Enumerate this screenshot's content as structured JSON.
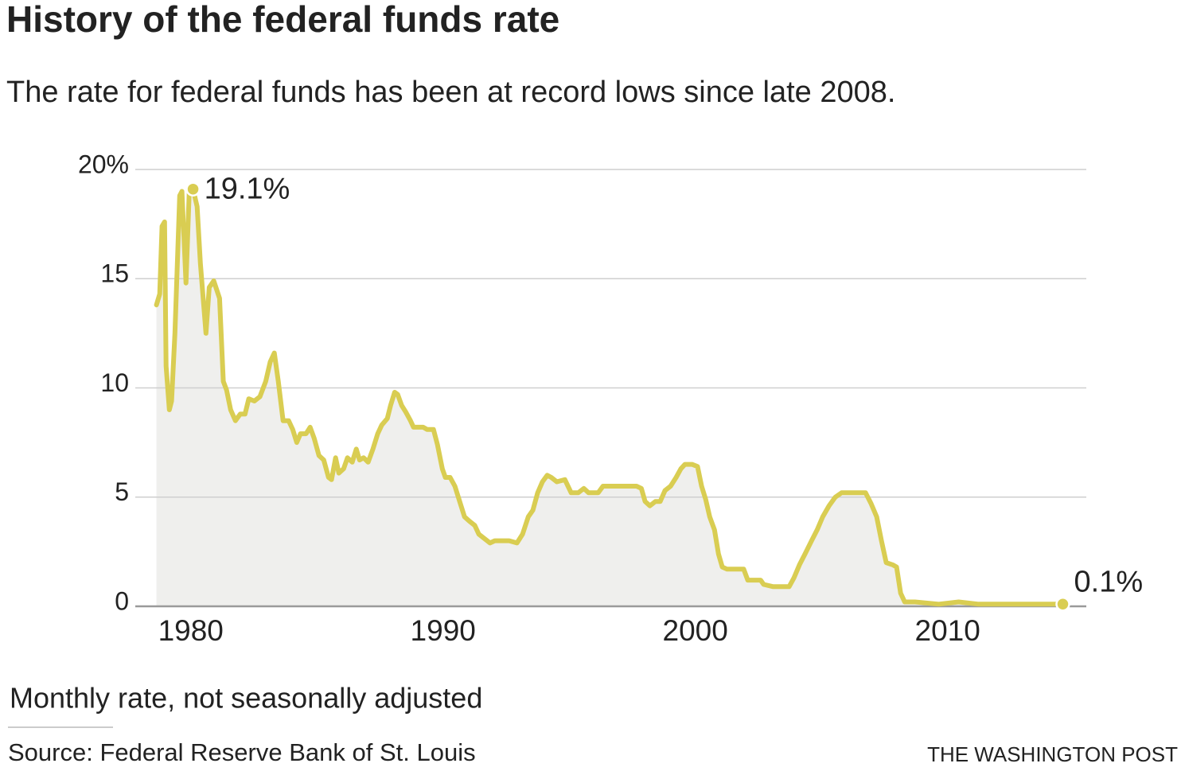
{
  "chart_data": {
    "type": "line",
    "title": "History of the federal funds rate",
    "subtitle": "The rate for federal funds has been at record lows since late 2008.",
    "note": "Monthly rate, not seasonally adjusted",
    "source": "Source: Federal Reserve Bank of St. Louis",
    "credit": "THE WASHINGTON POST",
    "color": "#d9cd52",
    "xlim": [
      1977.8,
      2015.5
    ],
    "ylim": [
      0,
      20
    ],
    "xticks": [
      1980,
      1990,
      2000,
      2010
    ],
    "yticks": [
      0,
      5,
      10,
      15,
      {
        "value": 20,
        "label": "20%"
      }
    ],
    "grid": true,
    "x": [
      1978.64,
      1978.77,
      1978.86,
      1978.96,
      1979.02,
      1979.15,
      1979.24,
      1979.37,
      1979.56,
      1979.65,
      1979.81,
      1979.94,
      1980.09,
      1980.25,
      1980.38,
      1980.6,
      1980.73,
      1980.91,
      1981.14,
      1981.29,
      1981.42,
      1981.58,
      1981.77,
      1981.96,
      1982.15,
      1982.3,
      1982.52,
      1982.74,
      1982.97,
      1983.15,
      1983.31,
      1983.47,
      1983.66,
      1983.88,
      1984.04,
      1984.2,
      1984.35,
      1984.57,
      1984.73,
      1984.89,
      1985.08,
      1985.27,
      1985.46,
      1985.58,
      1985.74,
      1985.87,
      1986.06,
      1986.21,
      1986.4,
      1986.56,
      1986.69,
      1986.85,
      1987.03,
      1987.22,
      1987.41,
      1987.57,
      1987.79,
      1987.92,
      1988.08,
      1988.2,
      1988.36,
      1988.52,
      1988.71,
      1988.83,
      1989.02,
      1989.21,
      1989.37,
      1989.62,
      1989.78,
      1989.97,
      1990.09,
      1990.28,
      1990.47,
      1990.66,
      1990.85,
      1991.04,
      1991.26,
      1991.42,
      1991.64,
      1991.86,
      1992.05,
      1992.3,
      1992.62,
      1992.93,
      1993.15,
      1993.38,
      1993.56,
      1993.75,
      1993.94,
      1994.13,
      1994.29,
      1994.51,
      1994.83,
      1995.08,
      1995.36,
      1995.58,
      1995.77,
      1996.03,
      1996.15,
      1996.34,
      1996.59,
      1996.88,
      1997.19,
      1997.41,
      1997.67,
      1997.86,
      1998.01,
      1998.2,
      1998.42,
      1998.61,
      1998.8,
      1999.02,
      1999.24,
      1999.43,
      1999.59,
      1999.87,
      2000.09,
      2000.25,
      2000.41,
      2000.57,
      2000.76,
      2000.92,
      2001.07,
      2001.26,
      2001.58,
      2001.92,
      2002.08,
      2002.4,
      2002.59,
      2002.71,
      2003.09,
      2003.72,
      2003.91,
      2004.13,
      2004.35,
      2004.61,
      2004.83,
      2005.05,
      2005.3,
      2005.55,
      2005.8,
      2006.03,
      2006.34,
      2006.75,
      2006.97,
      2007.19,
      2007.38,
      2007.57,
      2007.82,
      2007.98,
      2008.14,
      2008.3,
      2008.71,
      2009.65,
      2010.44,
      2011.23,
      2012.18,
      2013.12,
      2014.07,
      2014.57
    ],
    "values": [
      13.8,
      14.3,
      17.4,
      17.6,
      11.0,
      9.0,
      9.4,
      12.5,
      18.8,
      19.0,
      14.8,
      19.0,
      19.1,
      18.3,
      15.7,
      12.5,
      14.6,
      14.9,
      14.1,
      10.3,
      9.9,
      9.0,
      8.5,
      8.8,
      8.8,
      9.5,
      9.4,
      9.6,
      10.3,
      11.2,
      11.6,
      10.3,
      8.5,
      8.5,
      8.1,
      7.5,
      7.9,
      7.9,
      8.2,
      7.7,
      6.9,
      6.7,
      5.9,
      5.8,
      6.8,
      6.1,
      6.3,
      6.8,
      6.6,
      7.2,
      6.7,
      6.8,
      6.6,
      7.2,
      7.9,
      8.3,
      8.6,
      9.2,
      9.8,
      9.7,
      9.2,
      8.9,
      8.5,
      8.2,
      8.2,
      8.2,
      8.1,
      8.1,
      7.4,
      6.3,
      5.9,
      5.9,
      5.5,
      4.8,
      4.1,
      3.9,
      3.7,
      3.3,
      3.1,
      2.9,
      3.0,
      3.0,
      3.0,
      2.9,
      3.3,
      4.1,
      4.4,
      5.2,
      5.7,
      6.0,
      5.9,
      5.7,
      5.8,
      5.2,
      5.2,
      5.4,
      5.2,
      5.2,
      5.2,
      5.5,
      5.5,
      5.5,
      5.5,
      5.5,
      5.5,
      5.4,
      4.8,
      4.6,
      4.8,
      4.8,
      5.3,
      5.5,
      5.9,
      6.3,
      6.5,
      6.5,
      6.4,
      5.5,
      4.9,
      4.1,
      3.5,
      2.4,
      1.8,
      1.7,
      1.7,
      1.7,
      1.2,
      1.2,
      1.2,
      1.0,
      0.9,
      0.9,
      1.3,
      1.9,
      2.4,
      3.0,
      3.5,
      4.1,
      4.6,
      5.0,
      5.2,
      5.2,
      5.2,
      5.2,
      4.7,
      4.1,
      3.0,
      2.0,
      1.9,
      1.8,
      0.6,
      0.2,
      0.2,
      0.1,
      0.2,
      0.1,
      0.1,
      0.1,
      0.1,
      0.1
    ],
    "annotations": [
      {
        "x": 1980.09,
        "value": 19.1,
        "label": "19.1%"
      },
      {
        "x": 2014.57,
        "value": 0.1,
        "label": "0.1%"
      }
    ]
  }
}
